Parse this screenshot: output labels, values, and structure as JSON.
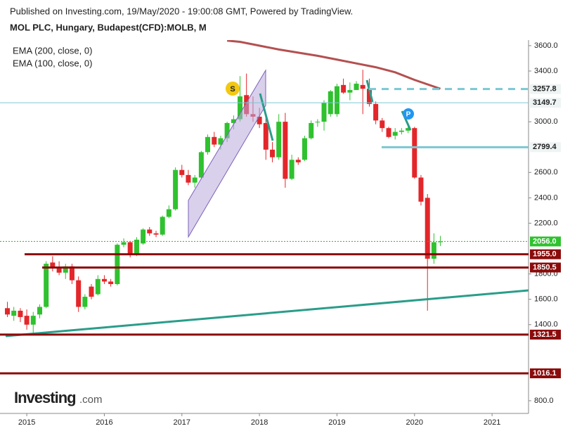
{
  "header": {
    "published": "Published on Investing.com, 19/May/2020 - 19:00:08 GMT, Powered by TradingView.",
    "symbol": "MOL PLC, Hungary, Budapest(CFD):MOLB, M"
  },
  "logo": {
    "brand": "Investing",
    "suffix": ".com"
  },
  "chart_data": {
    "type": "candlestick",
    "legend": [
      "EMA (200, close, 0)",
      "EMA (100, close, 0)"
    ],
    "up_color": "#2fc12f",
    "down_color": "#e3262a",
    "x": [
      2014.75,
      2014.833,
      2014.917,
      2015.0,
      2015.083,
      2015.167,
      2015.25,
      2015.333,
      2015.417,
      2015.5,
      2015.583,
      2015.667,
      2015.75,
      2015.833,
      2015.917,
      2016.0,
      2016.083,
      2016.167,
      2016.25,
      2016.333,
      2016.417,
      2016.5,
      2016.583,
      2016.667,
      2016.75,
      2016.833,
      2016.917,
      2017.0,
      2017.083,
      2017.167,
      2017.25,
      2017.333,
      2017.417,
      2017.5,
      2017.583,
      2017.667,
      2017.75,
      2017.833,
      2017.917,
      2018.0,
      2018.083,
      2018.167,
      2018.25,
      2018.333,
      2018.417,
      2018.5,
      2018.583,
      2018.667,
      2018.75,
      2018.833,
      2018.917,
      2019.0,
      2019.083,
      2019.167,
      2019.25,
      2019.333,
      2019.417,
      2019.5,
      2019.583,
      2019.667,
      2019.75,
      2019.833,
      2019.917,
      2020.0,
      2020.083,
      2020.167,
      2020.25,
      2020.333
    ],
    "open": [
      1530,
      1470,
      1510,
      1470,
      1400,
      1480,
      1540,
      1890,
      1850,
      1810,
      1860,
      1750,
      1540,
      1700,
      1640,
      1760,
      1740,
      1720,
      2030,
      2050,
      1960,
      2040,
      2150,
      2120,
      2110,
      2250,
      2310,
      2620,
      2580,
      2520,
      2560,
      2760,
      2880,
      2820,
      2870,
      2990,
      3020,
      3210,
      3060,
      3040,
      2990,
      2780,
      2720,
      3000,
      2550,
      2700,
      2700,
      2870,
      3000,
      3000,
      3060,
      3060,
      3290,
      3230,
      3250,
      3290,
      3260,
      3140,
      3010,
      2950,
      2890,
      2920,
      2930,
      2950,
      2560,
      2400,
      1920,
      2050
    ],
    "high": [
      1580,
      1540,
      1530,
      1520,
      1500,
      1560,
      1900,
      1940,
      1900,
      1880,
      1880,
      1780,
      1640,
      1720,
      1790,
      1790,
      1760,
      2040,
      2080,
      2060,
      2090,
      2160,
      2170,
      2140,
      2260,
      2340,
      2640,
      2660,
      2620,
      2580,
      2770,
      2900,
      2920,
      2890,
      3000,
      3050,
      3360,
      3380,
      3200,
      3110,
      3040,
      2840,
      3060,
      3070,
      2740,
      2720,
      2890,
      3010,
      3020,
      3170,
      3250,
      3300,
      3340,
      3310,
      3320,
      3410,
      3340,
      3160,
      3030,
      2960,
      2950,
      2950,
      2960,
      2960,
      2580,
      2430,
      2120,
      2100
    ],
    "low": [
      1460,
      1430,
      1420,
      1360,
      1330,
      1450,
      1530,
      1820,
      1790,
      1760,
      1720,
      1500,
      1520,
      1600,
      1630,
      1720,
      1700,
      1710,
      2010,
      1930,
      1940,
      2030,
      2100,
      2090,
      2100,
      2240,
      2300,
      2560,
      2500,
      2480,
      2550,
      2740,
      2800,
      2780,
      2840,
      2940,
      3000,
      3040,
      3000,
      2950,
      2700,
      2680,
      2700,
      2480,
      2540,
      2660,
      2690,
      2860,
      2960,
      2930,
      3040,
      3040,
      3220,
      3170,
      3250,
      3060,
      3120,
      2980,
      2920,
      2870,
      2860,
      2900,
      2910,
      2550,
      2340,
      1510,
      1880,
      2020
    ],
    "close": [
      1480,
      1510,
      1460,
      1400,
      1470,
      1540,
      1880,
      1850,
      1810,
      1860,
      1750,
      1540,
      1620,
      1620,
      1760,
      1740,
      1720,
      2030,
      2050,
      1950,
      2070,
      2150,
      2120,
      2110,
      2250,
      2310,
      2620,
      2580,
      2520,
      2560,
      2760,
      2880,
      2820,
      2870,
      2990,
      3020,
      3200,
      3060,
      3040,
      2980,
      2780,
      2720,
      3000,
      2550,
      2700,
      2680,
      2870,
      2990,
      3000,
      3150,
      3240,
      3280,
      3230,
      3250,
      3300,
      3260,
      3140,
      3010,
      2950,
      2880,
      2920,
      2930,
      2950,
      2560,
      2370,
      1920,
      2050,
      2056
    ],
    "ema": {
      "color": "#b45050",
      "x": [
        2017.583,
        2017.75,
        2017.917,
        2018.083,
        2018.25,
        2018.5,
        2018.75,
        2019.0,
        2019.25,
        2019.5,
        2019.75,
        2020.0,
        2020.333
      ],
      "values": [
        3640,
        3630,
        3610,
        3590,
        3570,
        3545,
        3520,
        3490,
        3460,
        3430,
        3390,
        3330,
        3260
      ]
    },
    "levels": [
      {
        "value": 3257.8,
        "label": "3257.8",
        "color": "#7cc7d3",
        "text_color": "#222",
        "box": "#eef3f4"
      },
      {
        "value": 3149.7,
        "label": "3149.7",
        "color": "#7cc7d3",
        "text_color": "#222",
        "box": "#eef3f4"
      },
      {
        "value": 2799.4,
        "label": "2799.4",
        "color": "#7cc7d3",
        "text_color": "#222",
        "box": "#eef3f4"
      },
      {
        "value": 2056,
        "label": "2056.0",
        "color": "#22b822",
        "text_color": "#fff",
        "box": "#2fc12f"
      },
      {
        "value": 1955,
        "label": "1955.0",
        "color": "#8b0b0b",
        "text_color": "#fff",
        "box": "#8b0b0b"
      },
      {
        "value": 1850.5,
        "label": "1850.5",
        "color": "#8b0b0b",
        "text_color": "#fff",
        "box": "#8b0b0b"
      },
      {
        "value": 1321.5,
        "label": "1321.5",
        "color": "#8b0b0b",
        "text_color": "#fff",
        "box": "#8b0b0b"
      },
      {
        "value": 1016.1,
        "label": "1016.1",
        "color": "#8b0b0b",
        "text_color": "#fff",
        "box": "#8b0b0b"
      }
    ],
    "annotations": [
      "S",
      "P"
    ],
    "xlim": [
      2014.7,
      2021.47
    ],
    "ylim": [
      700,
      3644
    ],
    "xticks": [
      2015,
      2016,
      2017,
      2018,
      2019,
      2020,
      2021
    ],
    "yticks": [
      {
        "value": 3600,
        "label": "3600.0"
      },
      {
        "value": 3400,
        "label": "3400.0"
      },
      {
        "value": 3000,
        "label": "3000.0"
      },
      {
        "value": 2600,
        "label": "2600.0"
      },
      {
        "value": 2400,
        "label": "2400.0"
      },
      {
        "value": 2200,
        "label": "2200.0"
      },
      {
        "value": 1800,
        "label": "1800.0"
      },
      {
        "value": 1600,
        "label": "1600.0"
      },
      {
        "value": 1400,
        "label": "1400.0"
      },
      {
        "value": 800,
        "label": "800.0"
      }
    ]
  }
}
